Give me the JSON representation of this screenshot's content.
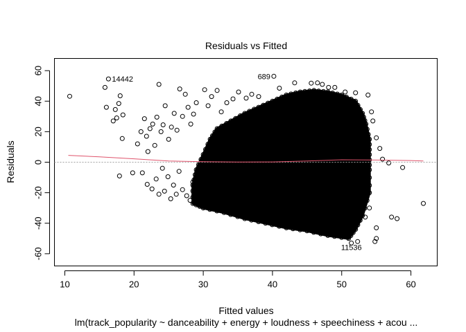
{
  "chart_data": {
    "type": "scatter",
    "title": "Residuals vs Fitted",
    "xlabel": "Fitted values",
    "ylabel": "Residuals",
    "subtitle": "lm(track_popularity ~ danceability + energy + loudness + speechiness + acou ...",
    "xlim": [
      8.5,
      63.8
    ],
    "ylim": [
      -68,
      68
    ],
    "x_ticks": [
      10,
      20,
      30,
      40,
      50,
      60
    ],
    "y_ticks": [
      -60,
      -40,
      -20,
      0,
      20,
      40,
      60
    ],
    "x_tick_labels": [
      "10",
      "20",
      "30",
      "40",
      "50",
      "60"
    ],
    "y_tick_labels": [
      "-60",
      "-40",
      "-20",
      "0",
      "20",
      "40",
      "60"
    ],
    "grid": false,
    "legend": "none",
    "colors": {
      "points": "#000000",
      "smoother": "#df536b",
      "zero_line": "#a0a0a0"
    },
    "reference_line": {
      "y": 0,
      "style": "dotted"
    },
    "smoother": {
      "x": [
        10.5,
        15,
        20,
        25,
        30,
        35,
        40,
        45,
        50,
        55,
        60,
        61.8
      ],
      "y": [
        4.5,
        3.5,
        2.2,
        0.8,
        0.3,
        0.1,
        0.2,
        0.8,
        1.6,
        1.4,
        1.1,
        0.8
      ]
    },
    "dense_region": {
      "description": "dense cloud of thousands of residuals between fitted 30 and 54",
      "outline": [
        [
          34,
          27
        ],
        [
          36,
          32
        ],
        [
          38,
          36
        ],
        [
          40,
          40
        ],
        [
          42,
          44
        ],
        [
          44,
          46
        ],
        [
          46,
          47
        ],
        [
          48,
          46
        ],
        [
          50,
          44
        ],
        [
          52,
          40
        ],
        [
          53,
          32
        ],
        [
          53.5,
          25
        ],
        [
          54,
          15
        ],
        [
          54,
          5
        ],
        [
          54,
          -5
        ],
        [
          54,
          -20
        ],
        [
          53,
          -35
        ],
        [
          52,
          -44
        ],
        [
          51,
          -50
        ],
        [
          48,
          -48
        ],
        [
          45,
          -45
        ],
        [
          42,
          -43
        ],
        [
          39,
          -40
        ],
        [
          36,
          -37
        ],
        [
          33,
          -33
        ],
        [
          30,
          -30
        ],
        [
          28.5,
          -27
        ],
        [
          28.5,
          -15
        ],
        [
          29,
          -5
        ],
        [
          30,
          5
        ],
        [
          31,
          15
        ],
        [
          32,
          22
        ]
      ]
    },
    "points": [
      {
        "x": 10.7,
        "y": 43.2
      },
      {
        "x": 15.8,
        "y": 49.0
      },
      {
        "x": 16.3,
        "y": 54.6
      },
      {
        "x": 16.0,
        "y": 36.0
      },
      {
        "x": 17.0,
        "y": 27.0
      },
      {
        "x": 17.3,
        "y": 34.5
      },
      {
        "x": 17.5,
        "y": 29.0
      },
      {
        "x": 17.8,
        "y": 38.5
      },
      {
        "x": 18.0,
        "y": 43.5
      },
      {
        "x": 18.4,
        "y": 31.0
      },
      {
        "x": 18.3,
        "y": 15.5
      },
      {
        "x": 17.9,
        "y": -9.0
      },
      {
        "x": 20.5,
        "y": 12.0
      },
      {
        "x": 21.0,
        "y": 20.0
      },
      {
        "x": 21.5,
        "y": 28.5
      },
      {
        "x": 21.8,
        "y": 17.0
      },
      {
        "x": 22.0,
        "y": 7.0
      },
      {
        "x": 22.3,
        "y": 22.0
      },
      {
        "x": 22.7,
        "y": 25.0
      },
      {
        "x": 23.0,
        "y": 11.0
      },
      {
        "x": 23.3,
        "y": 29.5
      },
      {
        "x": 23.6,
        "y": 51.0
      },
      {
        "x": 23.9,
        "y": 20.0
      },
      {
        "x": 24.2,
        "y": 24.5
      },
      {
        "x": 24.5,
        "y": 37.0
      },
      {
        "x": 25.0,
        "y": 15.0
      },
      {
        "x": 25.4,
        "y": 23.0
      },
      {
        "x": 25.8,
        "y": 32.0
      },
      {
        "x": 26.2,
        "y": 21.0
      },
      {
        "x": 26.6,
        "y": 48.0
      },
      {
        "x": 27.0,
        "y": 30.0
      },
      {
        "x": 27.4,
        "y": 44.5
      },
      {
        "x": 27.8,
        "y": 36.0
      },
      {
        "x": 28.2,
        "y": 25.0
      },
      {
        "x": 28.6,
        "y": 31.5
      },
      {
        "x": 29.0,
        "y": 39.0
      },
      {
        "x": 30.2,
        "y": 47.5
      },
      {
        "x": 30.7,
        "y": 37.0
      },
      {
        "x": 31.2,
        "y": 43.0
      },
      {
        "x": 32.0,
        "y": 47.0
      },
      {
        "x": 32.6,
        "y": 33.0
      },
      {
        "x": 33.4,
        "y": 39.0
      },
      {
        "x": 34.3,
        "y": 41.5
      },
      {
        "x": 35.1,
        "y": 46.0
      },
      {
        "x": 36.2,
        "y": 42.0
      },
      {
        "x": 37.0,
        "y": 44.5
      },
      {
        "x": 38.0,
        "y": 43.0
      },
      {
        "x": 40.2,
        "y": 56.3
      },
      {
        "x": 41.0,
        "y": 48.5
      },
      {
        "x": 43.2,
        "y": 52.0
      },
      {
        "x": 45.6,
        "y": 51.8
      },
      {
        "x": 46.5,
        "y": 52.0
      },
      {
        "x": 47.2,
        "y": 51.0
      },
      {
        "x": 48.1,
        "y": 49.0
      },
      {
        "x": 49.0,
        "y": 49.0
      },
      {
        "x": 50.5,
        "y": 46.0
      },
      {
        "x": 52.0,
        "y": 45.5
      },
      {
        "x": 53.8,
        "y": 44.0
      },
      {
        "x": 54.3,
        "y": 33.0
      },
      {
        "x": 54.5,
        "y": 27.0
      },
      {
        "x": 55.0,
        "y": 16.0
      },
      {
        "x": 55.5,
        "y": 9.0
      },
      {
        "x": 55.9,
        "y": 2.0
      },
      {
        "x": 56.8,
        "y": -0.5
      },
      {
        "x": 58.8,
        "y": -3.5
      },
      {
        "x": 57.2,
        "y": -36.0
      },
      {
        "x": 58.0,
        "y": -37.0
      },
      {
        "x": 61.8,
        "y": -27.0
      },
      {
        "x": 55.0,
        "y": -43.0
      },
      {
        "x": 54.8,
        "y": -52.0
      },
      {
        "x": 55.0,
        "y": -50.0
      },
      {
        "x": 54.0,
        "y": -30.0
      },
      {
        "x": 53.4,
        "y": -36.0
      },
      {
        "x": 52.3,
        "y": -52.0
      },
      {
        "x": 51.4,
        "y": -53.0
      },
      {
        "x": 50.8,
        "y": -49.0
      },
      {
        "x": 21.2,
        "y": -7.0
      },
      {
        "x": 21.9,
        "y": -14.5
      },
      {
        "x": 22.6,
        "y": -17.5
      },
      {
        "x": 23.2,
        "y": -11.0
      },
      {
        "x": 23.6,
        "y": -21.0
      },
      {
        "x": 24.1,
        "y": -4.0
      },
      {
        "x": 24.4,
        "y": -19.0
      },
      {
        "x": 24.9,
        "y": -9.5
      },
      {
        "x": 25.3,
        "y": -24.0
      },
      {
        "x": 25.7,
        "y": -15.0
      },
      {
        "x": 26.1,
        "y": -21.0
      },
      {
        "x": 26.5,
        "y": -6.0
      },
      {
        "x": 27.0,
        "y": -18.0
      },
      {
        "x": 27.6,
        "y": -22.0
      },
      {
        "x": 28.1,
        "y": -25.0
      },
      {
        "x": 28.5,
        "y": -13.0
      },
      {
        "x": 19.8,
        "y": -7.0
      }
    ],
    "point_labels": [
      {
        "text": "14442",
        "x": 16.3,
        "y": 54.6
      },
      {
        "text": "689",
        "x": 40.2,
        "y": 56.3
      },
      {
        "text": "11536",
        "x": 51.4,
        "y": -53.0
      }
    ]
  }
}
